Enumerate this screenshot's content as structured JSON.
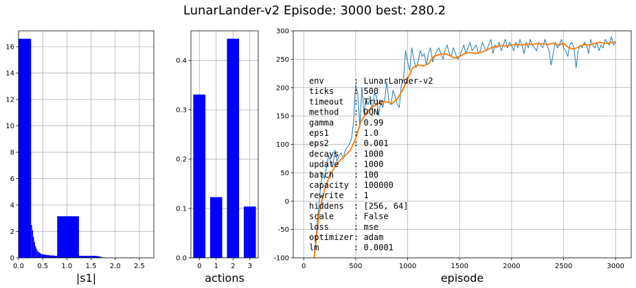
{
  "title": "LunarLander-v2  Episode: 3000  best:   280.2",
  "colors": {
    "bar": "#0000ff",
    "raw": "#1f77b4",
    "smooth": "#ff7f0e",
    "grid": "#b0b0b0"
  },
  "chart_data": [
    {
      "type": "bar",
      "name": "s1-histogram",
      "xlabel": "|s1|",
      "ylabel": "",
      "xlim": [
        0,
        2.8
      ],
      "ylim": [
        0,
        17.2
      ],
      "xticks": [
        0.0,
        0.5,
        1.0,
        1.5,
        2.0,
        2.5
      ],
      "xtick_labels": [
        "0.0",
        "0.5",
        "1.0",
        "1.5",
        "2.0",
        "2.5"
      ],
      "yticks": [
        0,
        2,
        4,
        6,
        8,
        10,
        12,
        14,
        16
      ],
      "grid": true,
      "bins": [
        [
          0.0,
          0.26,
          16.6
        ],
        [
          0.26,
          0.28,
          2.5
        ],
        [
          0.28,
          0.3,
          2.1
        ],
        [
          0.3,
          0.32,
          1.6
        ],
        [
          0.32,
          0.34,
          1.2
        ],
        [
          0.34,
          0.36,
          0.9
        ],
        [
          0.36,
          0.38,
          0.7
        ],
        [
          0.38,
          0.4,
          0.55
        ],
        [
          0.4,
          0.42,
          0.45
        ],
        [
          0.42,
          0.44,
          0.4
        ],
        [
          0.44,
          0.46,
          0.35
        ],
        [
          0.46,
          0.48,
          0.3
        ],
        [
          0.48,
          0.52,
          0.27
        ],
        [
          0.52,
          0.56,
          0.25
        ],
        [
          0.56,
          0.6,
          0.22
        ],
        [
          0.6,
          0.66,
          0.2
        ],
        [
          0.66,
          0.74,
          0.18
        ],
        [
          0.74,
          0.8,
          0.15
        ],
        [
          0.8,
          1.25,
          3.15
        ],
        [
          1.25,
          1.45,
          0.15
        ],
        [
          1.45,
          1.62,
          0.15
        ],
        [
          1.62,
          1.68,
          0.12
        ],
        [
          1.68,
          1.72,
          0.08
        ],
        [
          1.72,
          1.8,
          0.03
        ]
      ]
    },
    {
      "type": "bar",
      "name": "actions-histogram",
      "xlabel": "actions",
      "ylabel": "",
      "xlim": [
        -0.5,
        3.5
      ],
      "ylim": [
        0,
        0.46
      ],
      "categories": [
        "0",
        "1",
        "2",
        "3"
      ],
      "values": [
        0.331,
        0.123,
        0.444,
        0.104
      ],
      "yticks": [
        0.0,
        0.1,
        0.2,
        0.3,
        0.4
      ],
      "ytick_labels": [
        "0.0",
        "0.1",
        "0.2",
        "0.3",
        "0.4"
      ],
      "grid": true
    },
    {
      "type": "line",
      "name": "reward-curve",
      "xlabel": "episode",
      "ylabel": "",
      "xlim": [
        -100,
        3150
      ],
      "ylim": [
        -100,
        300
      ],
      "xticks": [
        0,
        500,
        1000,
        1500,
        2000,
        2500,
        3000
      ],
      "yticks": [
        -100,
        -50,
        0,
        50,
        100,
        150,
        200,
        250,
        300
      ],
      "grid": true,
      "series": [
        {
          "kind": "raw",
          "x": [
            100,
            120,
            140,
            160,
            180,
            200,
            220,
            240,
            260,
            280,
            300,
            320,
            340,
            360,
            380,
            400,
            420,
            440,
            460,
            480,
            500,
            520,
            540,
            560,
            580,
            600,
            620,
            640,
            660,
            680,
            700,
            720,
            740,
            760,
            780,
            800,
            820,
            840,
            860,
            880,
            900,
            920,
            940,
            960,
            980,
            1000,
            1020,
            1040,
            1060,
            1080,
            1100,
            1120,
            1140,
            1160,
            1180,
            1200,
            1220,
            1240,
            1260,
            1280,
            1300,
            1320,
            1340,
            1360,
            1380,
            1400,
            1420,
            1440,
            1460,
            1480,
            1500,
            1520,
            1540,
            1560,
            1580,
            1600,
            1620,
            1640,
            1660,
            1680,
            1700,
            1720,
            1740,
            1760,
            1780,
            1800,
            1820,
            1840,
            1860,
            1880,
            1900,
            1920,
            1940,
            1960,
            1980,
            2000,
            2020,
            2040,
            2060,
            2080,
            2100,
            2120,
            2140,
            2160,
            2180,
            2200,
            2220,
            2240,
            2260,
            2280,
            2300,
            2320,
            2340,
            2360,
            2380,
            2400,
            2420,
            2440,
            2460,
            2480,
            2500,
            2520,
            2540,
            2560,
            2580,
            2600,
            2620,
            2640,
            2660,
            2680,
            2700,
            2720,
            2740,
            2760,
            2780,
            2800,
            2820,
            2840,
            2860,
            2880,
            2900,
            2920,
            2940,
            2960,
            2980,
            3000
          ],
          "y": [
            -100,
            -60,
            -20,
            20,
            50,
            40,
            60,
            80,
            70,
            60,
            90,
            70,
            80,
            85,
            75,
            90,
            95,
            100,
            110,
            140,
            205,
            190,
            130,
            200,
            155,
            180,
            170,
            185,
            160,
            190,
            185,
            150,
            175,
            165,
            180,
            210,
            175,
            170,
            195,
            185,
            170,
            165,
            205,
            215,
            265,
            245,
            230,
            270,
            250,
            235,
            245,
            265,
            255,
            260,
            240,
            260,
            270,
            245,
            255,
            265,
            270,
            260,
            250,
            265,
            275,
            260,
            255,
            270,
            260,
            250,
            255,
            265,
            275,
            260,
            270,
            280,
            265,
            270,
            275,
            260,
            265,
            280,
            270,
            265,
            275,
            285,
            260,
            275,
            270,
            280,
            265,
            275,
            285,
            270,
            280,
            275,
            265,
            280,
            270,
            285,
            275,
            260,
            280,
            270,
            285,
            275,
            270,
            265,
            280,
            275,
            270,
            285,
            275,
            265,
            240,
            260,
            280,
            270,
            275,
            285,
            270,
            265,
            255,
            275,
            280,
            270,
            235,
            265,
            275,
            270,
            280,
            275,
            260,
            285,
            275,
            270,
            280,
            265,
            275,
            270,
            285,
            280,
            275,
            290,
            275,
            280
          ]
        },
        {
          "kind": "smoothed",
          "x": [
            100,
            150,
            200,
            250,
            300,
            350,
            400,
            450,
            500,
            550,
            600,
            650,
            700,
            750,
            800,
            850,
            900,
            950,
            1000,
            1050,
            1100,
            1150,
            1200,
            1250,
            1300,
            1350,
            1400,
            1450,
            1500,
            1550,
            1600,
            1650,
            1700,
            1750,
            1800,
            1850,
            1900,
            1950,
            2000,
            2050,
            2100,
            2150,
            2200,
            2250,
            2300,
            2350,
            2400,
            2450,
            2500,
            2550,
            2600,
            2650,
            2700,
            2750,
            2800,
            2850,
            2900,
            2950,
            3000
          ],
          "y": [
            -100,
            -20,
            20,
            45,
            60,
            72,
            80,
            90,
            110,
            140,
            155,
            165,
            170,
            175,
            175,
            172,
            180,
            195,
            215,
            235,
            240,
            238,
            242,
            255,
            258,
            260,
            257,
            252,
            255,
            260,
            262,
            260,
            262,
            265,
            270,
            272,
            274,
            273,
            275,
            276,
            275,
            277,
            276,
            278,
            277,
            276,
            278,
            275,
            278,
            270,
            268,
            272,
            276,
            275,
            278,
            280,
            278,
            279,
            281
          ]
        }
      ],
      "info": [
        "env      : LunarLander-v2",
        "ticks    : 500",
        "timeout  : True",
        "method   : DQN",
        "gamma    : 0.99",
        "eps1     : 1.0",
        "eps2     : 0.001",
        "decays   : 1000",
        "update   : 1000",
        "batch    : 100",
        "capacity : 100000",
        "rewrite  : 1",
        "hiddens  : [256, 64]",
        "scale    : False",
        "loss     : mse",
        "optimizer: adam",
        "lm       : 0.0001"
      ]
    }
  ]
}
